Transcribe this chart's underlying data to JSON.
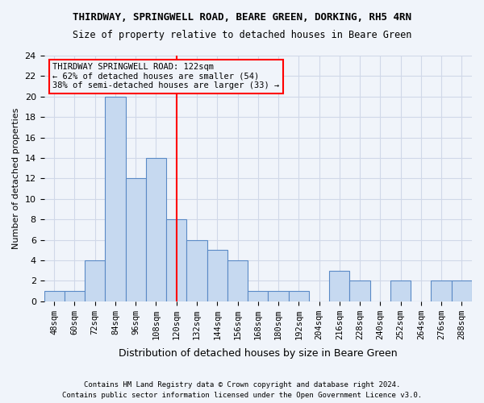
{
  "title1": "THIRDWAY, SPRINGWELL ROAD, BEARE GREEN, DORKING, RH5 4RN",
  "title2": "Size of property relative to detached houses in Beare Green",
  "xlabel": "Distribution of detached houses by size in Beare Green",
  "ylabel": "Number of detached properties",
  "categories": [
    "48sqm",
    "60sqm",
    "72sqm",
    "84sqm",
    "96sqm",
    "108sqm",
    "120sqm",
    "132sqm",
    "144sqm",
    "156sqm",
    "168sqm",
    "180sqm",
    "192sqm",
    "204sqm",
    "216sqm",
    "228sqm",
    "240sqm",
    "252sqm",
    "264sqm",
    "276sqm",
    "288sqm"
  ],
  "values": [
    1,
    1,
    4,
    20,
    12,
    14,
    8,
    6,
    5,
    4,
    1,
    1,
    1,
    0,
    3,
    2,
    0,
    2,
    0,
    2,
    2
  ],
  "bar_color": "#c6d9f0",
  "bar_edge_color": "#5a8ac6",
  "grid_color": "#d0d8e8",
  "background_color": "#f0f4fa",
  "ref_line_x": 6,
  "ref_line_color": "red",
  "annotation_text": "THIRDWAY SPRINGWELL ROAD: 122sqm\n← 62% of detached houses are smaller (54)\n38% of semi-detached houses are larger (33) →",
  "annotation_box_color": "red",
  "ylim": [
    0,
    24
  ],
  "yticks": [
    0,
    2,
    4,
    6,
    8,
    10,
    12,
    14,
    16,
    18,
    20,
    22,
    24
  ],
  "footnote1": "Contains HM Land Registry data © Crown copyright and database right 2024.",
  "footnote2": "Contains public sector information licensed under the Open Government Licence v3.0."
}
